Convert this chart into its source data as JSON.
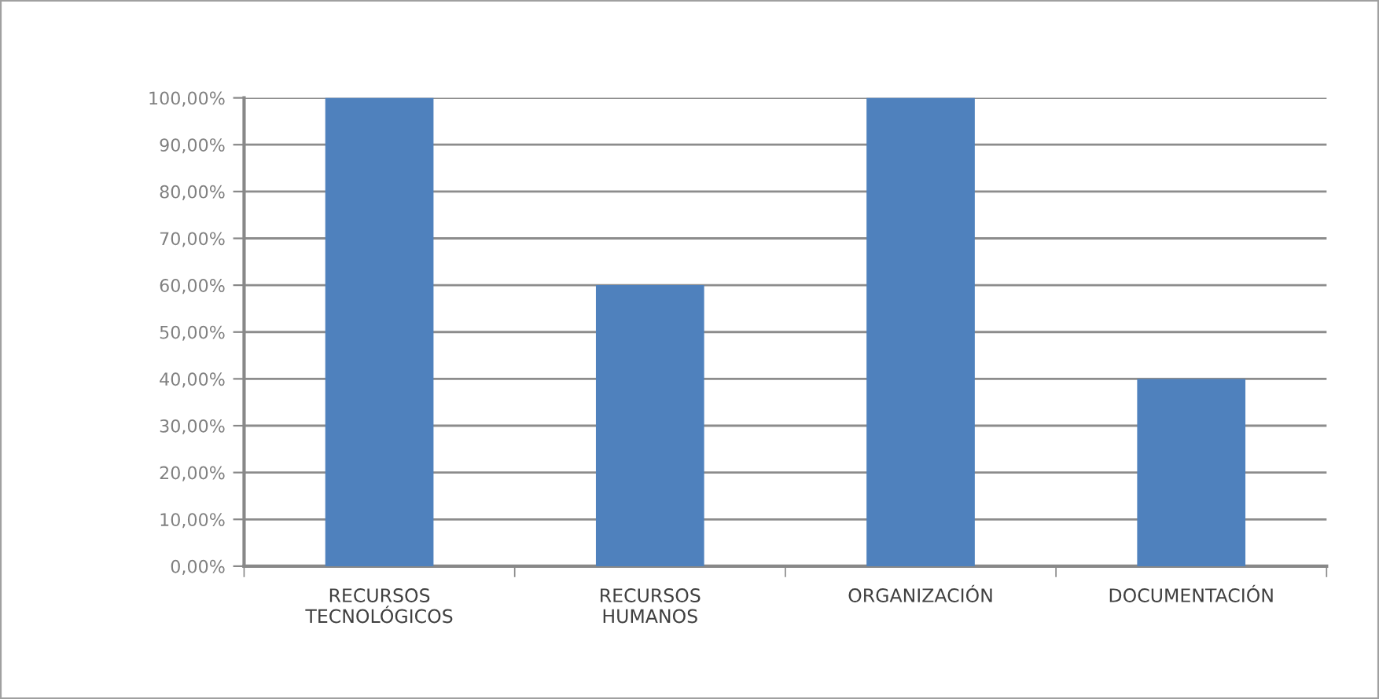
{
  "chart_data": {
    "type": "bar",
    "categories": [
      "RECURSOS\nTECNOLÓGICOS",
      "RECURSOS\nHUMANOS",
      "ORGANIZACIÓN",
      "DOCUMENTACIÓN"
    ],
    "values": [
      100,
      60,
      100,
      40
    ],
    "color": "#4f81bd",
    "ylim": [
      0,
      100
    ],
    "yticks": [
      {
        "value": 0,
        "label": "0,00%"
      },
      {
        "value": 10,
        "label": "10,00%"
      },
      {
        "value": 20,
        "label": "20,00%"
      },
      {
        "value": 30,
        "label": "30,00%"
      },
      {
        "value": 40,
        "label": "40,00%"
      },
      {
        "value": 50,
        "label": "50,00%"
      },
      {
        "value": 60,
        "label": "60,00%"
      },
      {
        "value": 70,
        "label": "70,00%"
      },
      {
        "value": 80,
        "label": "80,00%"
      },
      {
        "value": 90,
        "label": "90,00%"
      },
      {
        "value": 100,
        "label": "100,00%"
      }
    ],
    "grid": "y"
  }
}
